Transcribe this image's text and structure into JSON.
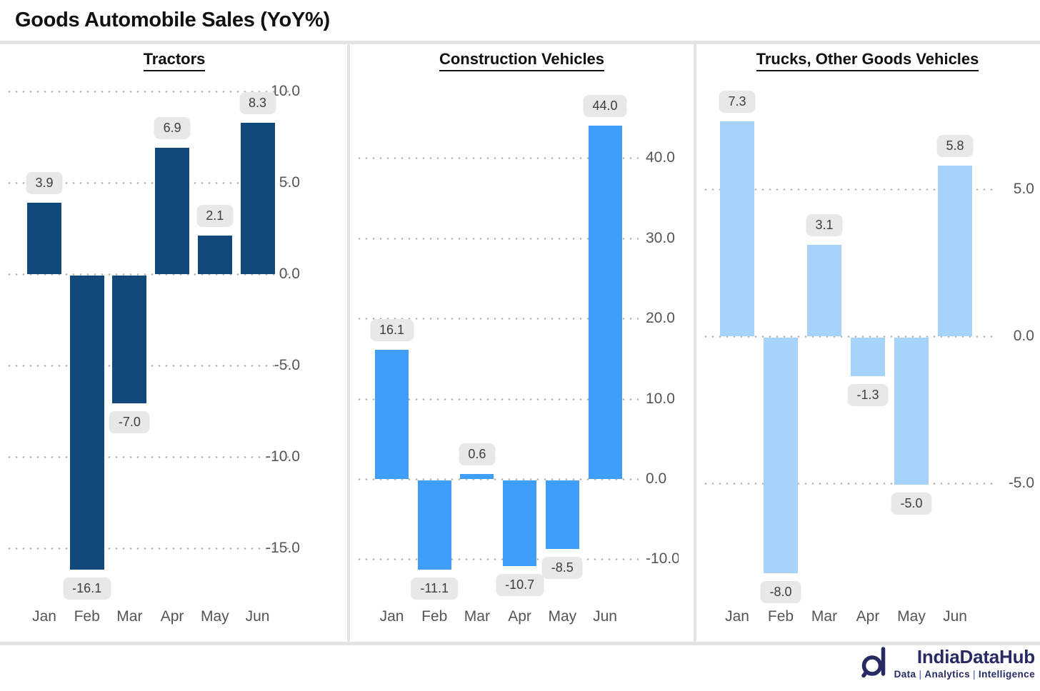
{
  "title": "Goods Automobile Sales (YoY%)",
  "months": [
    "Jan",
    "Feb",
    "Mar",
    "Apr",
    "May",
    "Jun"
  ],
  "colors": {
    "tractors_bar": "#11497D",
    "construction_bar": "#3F9EF7",
    "trucks_bar": "#A7D3FA",
    "value_pill_bg": "#e8e8e8",
    "value_pill_text": "#3d3d3d",
    "axis_text": "#555555",
    "gridline": "#b3b3b3",
    "divider": "#e4e4e4",
    "brand_navy": "#272a63",
    "tagline_separator": "#4050cc"
  },
  "chart_data": [
    {
      "type": "bar",
      "title": "Tractors",
      "categories": [
        "Jan",
        "Feb",
        "Mar",
        "Apr",
        "May",
        "Jun"
      ],
      "values": [
        3.9,
        -16.1,
        -7.0,
        6.9,
        2.1,
        8.3
      ],
      "value_labels": [
        "3.9",
        "-16.1",
        "-7.0",
        "6.9",
        "2.1",
        "8.3"
      ],
      "ytick_values": [
        10.0,
        5.0,
        0.0,
        -5.0,
        -10.0,
        -15.0
      ],
      "ytick_labels": [
        "10.0",
        "5.0",
        "0.0",
        "-5.0",
        "-10.0",
        "-15.0"
      ],
      "ylim": [
        -17.6,
        11.6
      ],
      "bar_color": "#11497D",
      "grid": true,
      "legend": "none",
      "xlabel": "",
      "ylabel": ""
    },
    {
      "type": "bar",
      "title": "Construction Vehicles",
      "categories": [
        "Jan",
        "Feb",
        "Mar",
        "Apr",
        "May",
        "Jun"
      ],
      "values": [
        16.1,
        -11.1,
        0.6,
        -10.7,
        -8.5,
        44.0
      ],
      "value_labels": [
        "16.1",
        "-11.1",
        "0.6",
        "-10.7",
        "-8.5",
        "44.0"
      ],
      "ytick_values": [
        40.0,
        30.0,
        20.0,
        10.0,
        0.0,
        -10.0
      ],
      "ytick_labels": [
        "40.0",
        "30.0",
        "20.0",
        "10.0",
        "0.0",
        "-10.0"
      ],
      "ylim": [
        -14.4,
        49.0
      ],
      "bar_color": "#3F9EF7",
      "grid": true,
      "legend": "none",
      "xlabel": "",
      "ylabel": ""
    },
    {
      "type": "bar",
      "title": "Trucks, Other Goods Vehicles",
      "categories": [
        "Jan",
        "Feb",
        "Mar",
        "Apr",
        "May",
        "Jun"
      ],
      "values": [
        7.3,
        -8.0,
        3.1,
        -1.3,
        -5.0,
        5.8
      ],
      "value_labels": [
        "7.3",
        "-8.0",
        "3.1",
        "-1.3",
        "-5.0",
        "5.8"
      ],
      "ytick_values": [
        5.0,
        0.0,
        -5.0
      ],
      "ytick_labels": [
        "5.0",
        "0.0",
        "-5.0"
      ],
      "ylim": [
        -9.9,
        8.5
      ],
      "bar_color": "#A7D3FA",
      "grid": true,
      "legend": "none",
      "xlabel": "",
      "ylabel": ""
    }
  ],
  "footer": {
    "brand": "IndiaDataHub",
    "tagline": [
      "Data",
      "Analytics",
      "Intelligence"
    ],
    "separator": "|"
  }
}
